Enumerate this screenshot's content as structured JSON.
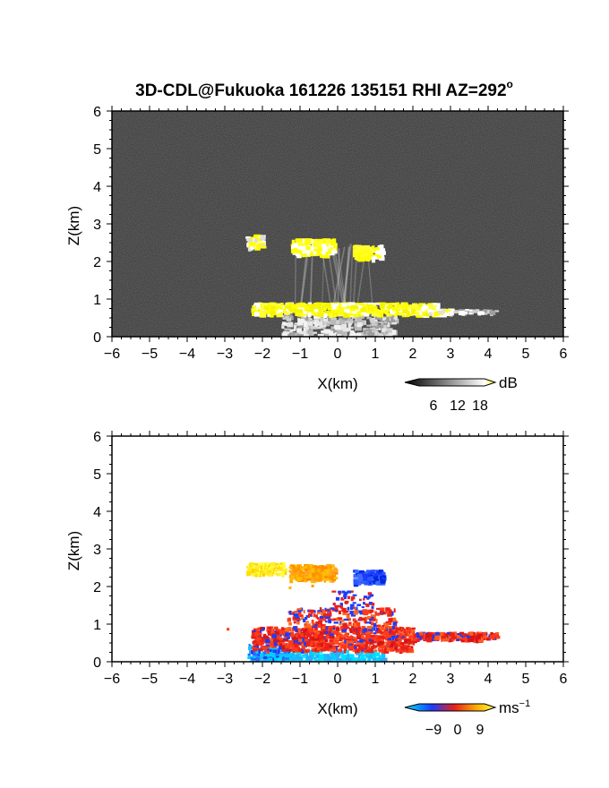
{
  "title": "3D-CDL@Fukuoka 161226 135151 RHI AZ=292",
  "title_sup": "o",
  "chart_data": [
    {
      "type": "heatmap",
      "panel": "upper",
      "quantity": "backscatter intensity",
      "xlabel": "X(km)",
      "ylabel": "Z(km)",
      "xlim": [
        -6,
        6
      ],
      "ylim": [
        0,
        6
      ],
      "x_ticks": [
        -6,
        -5,
        -4,
        -3,
        -2,
        -1,
        0,
        1,
        2,
        3,
        4,
        5,
        6
      ],
      "y_ticks": [
        0,
        1,
        2,
        3,
        4,
        5,
        6
      ],
      "grid": false,
      "colorbar": {
        "unit": "dB",
        "ticks": [
          6,
          12,
          18
        ],
        "colormap": "grayscale to yellow",
        "colors": [
          "#000000",
          "#ffffff",
          "#ffff00"
        ]
      },
      "background": "#2b2b2b",
      "features": [
        {
          "x": [
            -2.3,
            2.8
          ],
          "z": [
            0.6,
            0.95
          ],
          "intensity": "high (>18 dB), yellow"
        },
        {
          "x": [
            -2.4,
            -2.1
          ],
          "z": [
            2.4,
            2.7
          ],
          "intensity": "high, yellow"
        },
        {
          "x": [
            -1.3,
            -0.1
          ],
          "z": [
            2.2,
            2.6
          ],
          "intensity": "high, yellow"
        },
        {
          "x": [
            0.4,
            1.1
          ],
          "z": [
            2.1,
            2.4
          ],
          "intensity": "high, yellow"
        },
        {
          "x": [
            -1.5,
            1.5
          ],
          "z": [
            0.0,
            0.7
          ],
          "intensity": "moderate, light gray"
        }
      ]
    },
    {
      "type": "heatmap",
      "panel": "lower",
      "quantity": "radial velocity",
      "xlabel": "X(km)",
      "ylabel": "Z(km)",
      "xlim": [
        -6,
        6
      ],
      "ylim": [
        0,
        6
      ],
      "x_ticks": [
        -6,
        -5,
        -4,
        -3,
        -2,
        -1,
        0,
        1,
        2,
        3,
        4,
        5,
        6
      ],
      "y_ticks": [
        0,
        1,
        2,
        3,
        4,
        5,
        6
      ],
      "grid": false,
      "colorbar": {
        "unit": "ms",
        "unit_sup": "−1",
        "ticks": [
          "−9",
          "0",
          "9"
        ],
        "colormap": "cyan-blue-red-yellow",
        "colors": [
          "#00e5ff",
          "#1a3cff",
          "#e8201a",
          "#ffb000",
          "#ffff40"
        ]
      },
      "features": [
        {
          "x": [
            -2.4,
            -1.5
          ],
          "z": [
            2.35,
            2.65
          ],
          "velocity": "about +8, yellow"
        },
        {
          "x": [
            -1.3,
            -0.1
          ],
          "z": [
            2.2,
            2.6
          ],
          "velocity": "about +6, orange"
        },
        {
          "x": [
            0.4,
            1.2
          ],
          "z": [
            2.1,
            2.45
          ],
          "velocity": "about −6, blue"
        },
        {
          "x": [
            -2.4,
            4.2
          ],
          "z": [
            0.5,
            0.95
          ],
          "velocity": "mostly +3, red"
        },
        {
          "x": [
            -2.4,
            1.2
          ],
          "z": [
            0.0,
            0.35
          ],
          "velocity": "about −8, cyan"
        }
      ]
    }
  ]
}
